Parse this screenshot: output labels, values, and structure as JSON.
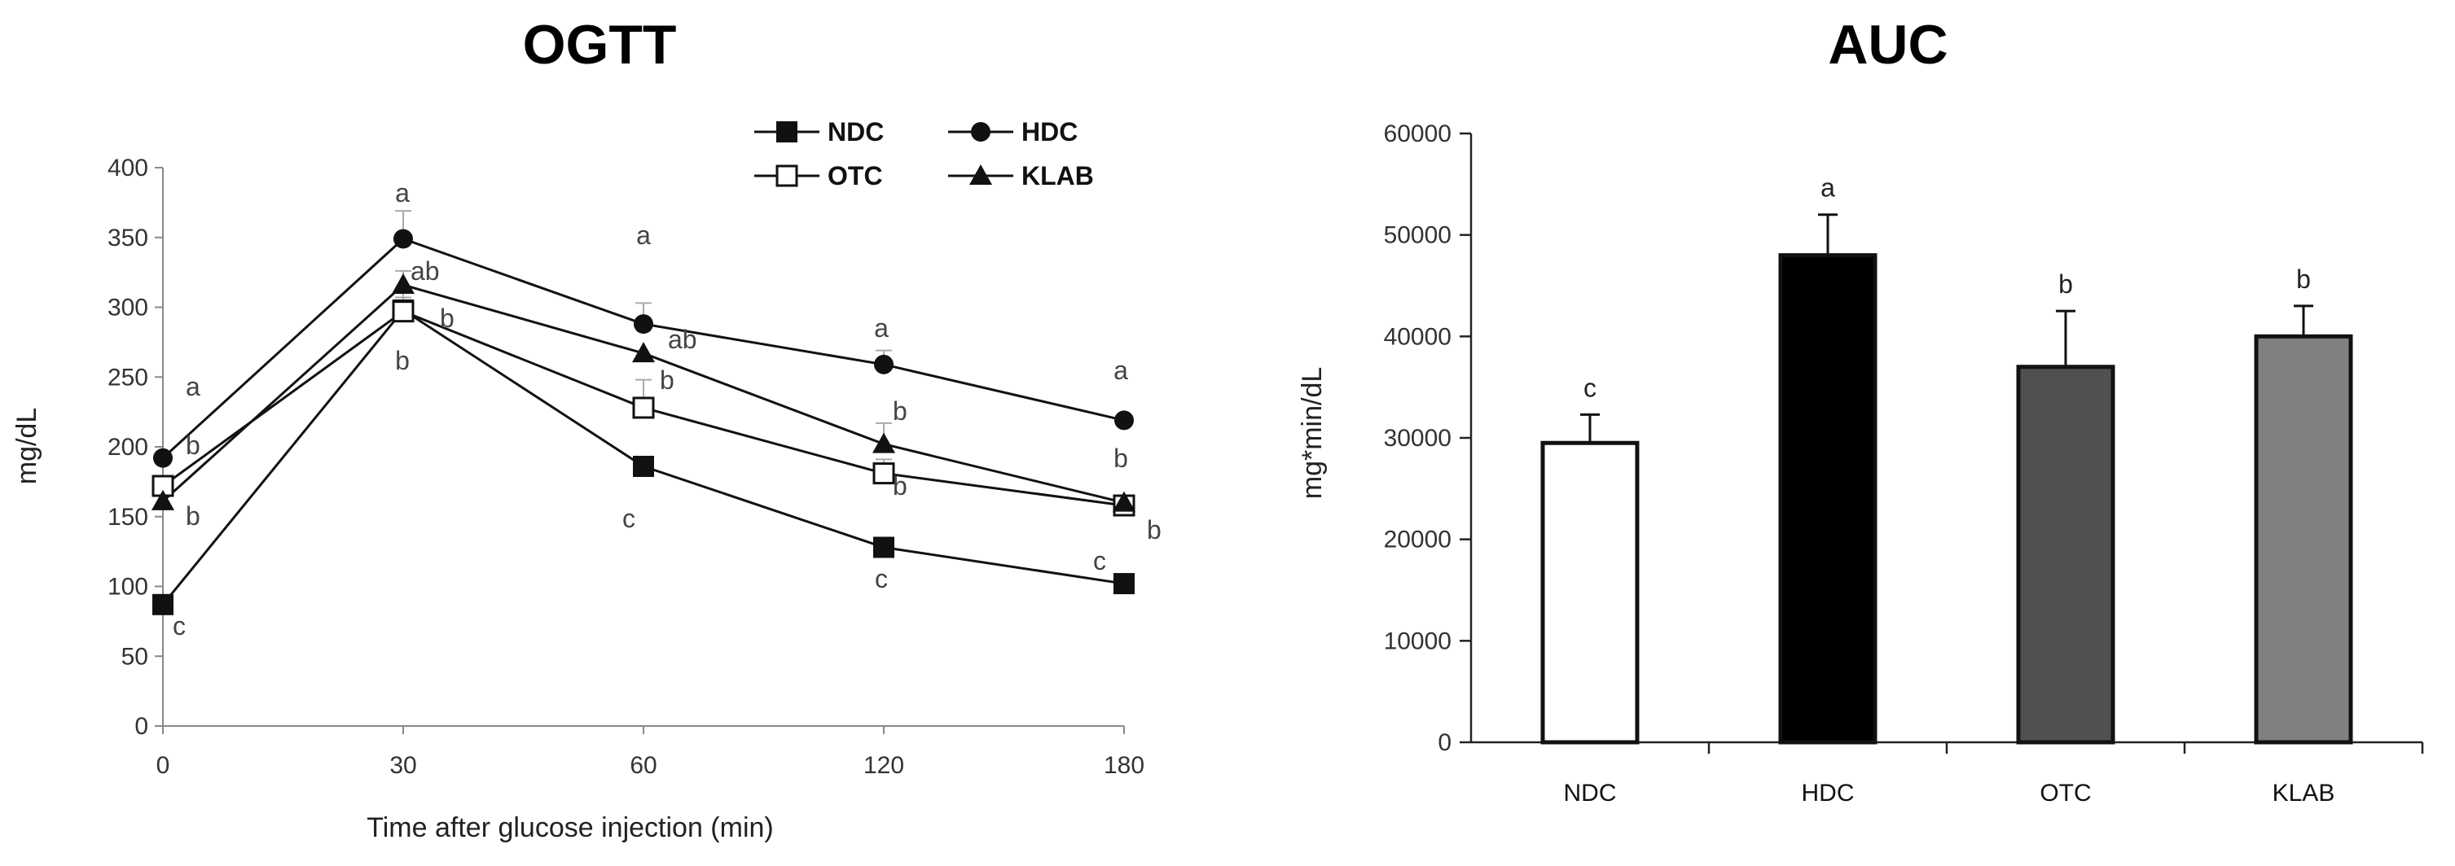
{
  "chart_data": [
    {
      "type": "line",
      "title": "OGTT",
      "xlabel": "Time after glucose injection (min)",
      "ylabel": "mg/dL",
      "x": [
        0,
        30,
        60,
        120,
        180
      ],
      "xticks": [
        "0",
        "30",
        "60",
        "120",
        "180"
      ],
      "ylim": [
        0,
        400
      ],
      "yticks": [
        "0",
        "50",
        "100",
        "150",
        "200",
        "250",
        "300",
        "350",
        "400"
      ],
      "legend": [
        "NDC",
        "HDC",
        "OTC",
        "KLAB"
      ],
      "series": [
        {
          "name": "NDC",
          "marker": "square-filled",
          "values": [
            87,
            298,
            186,
            128,
            102
          ],
          "errors": [
            0,
            15,
            0,
            0,
            0
          ]
        },
        {
          "name": "HDC",
          "marker": "circle-filled",
          "values": [
            192,
            349,
            288,
            259,
            219
          ],
          "errors": [
            0,
            20,
            15,
            10,
            0
          ]
        },
        {
          "name": "OTC",
          "marker": "square-open",
          "values": [
            172,
            297,
            228,
            181,
            158
          ],
          "errors": [
            0,
            10,
            20,
            10,
            0
          ]
        },
        {
          "name": "KLAB",
          "marker": "triangle-filled",
          "values": [
            161,
            316,
            267,
            202,
            160
          ],
          "errors": [
            0,
            10,
            0,
            15,
            0
          ]
        }
      ],
      "annotations": [
        {
          "x": 0,
          "text": "a"
        },
        {
          "x": 0,
          "text": "b"
        },
        {
          "x": 0,
          "text": "b"
        },
        {
          "x": 0,
          "text": "c"
        },
        {
          "x": 30,
          "text": "a"
        },
        {
          "x": 30,
          "text": "ab"
        },
        {
          "x": 30,
          "text": "b"
        },
        {
          "x": 30,
          "text": "b"
        },
        {
          "x": 60,
          "text": "a"
        },
        {
          "x": 60,
          "text": "ab"
        },
        {
          "x": 60,
          "text": "b"
        },
        {
          "x": 60,
          "text": "c"
        },
        {
          "x": 120,
          "text": "a"
        },
        {
          "x": 120,
          "text": "b"
        },
        {
          "x": 120,
          "text": "b"
        },
        {
          "x": 120,
          "text": "c"
        },
        {
          "x": 180,
          "text": "a"
        },
        {
          "x": 180,
          "text": "b"
        },
        {
          "x": 180,
          "text": "c"
        },
        {
          "x": 180,
          "text": "b"
        }
      ]
    },
    {
      "type": "bar",
      "title": "AUC",
      "xlabel": "",
      "ylabel": "mg*min/dL",
      "categories": [
        "NDC",
        "HDC",
        "OTC",
        "KLAB"
      ],
      "values": [
        29500,
        48000,
        37000,
        40000
      ],
      "errors": [
        2800,
        4000,
        5500,
        3000
      ],
      "ylim": [
        0,
        60000
      ],
      "yticks": [
        "0",
        "10000",
        "20000",
        "30000",
        "40000",
        "50000",
        "60000"
      ],
      "letters": [
        "c",
        "a",
        "b",
        "b"
      ],
      "colors": [
        "#ffffff",
        "#000000",
        "#505050",
        "#808080"
      ]
    }
  ]
}
